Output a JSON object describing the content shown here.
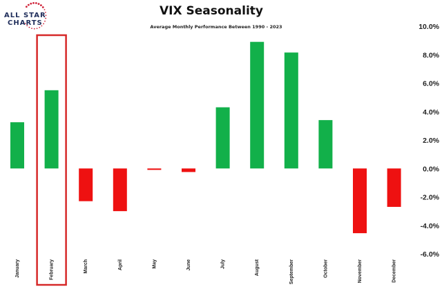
{
  "logo": {
    "line1": "ALL STAR",
    "line2": "CHARTS"
  },
  "chart_data": {
    "type": "bar",
    "title": "VIX Seasonality",
    "subtitle": "Average Monthly Performance Between 1990 - 2023",
    "categories": [
      "January",
      "February",
      "March",
      "April",
      "May",
      "June",
      "July",
      "August",
      "September",
      "October",
      "November",
      "December"
    ],
    "values": [
      3.25,
      5.5,
      -2.3,
      -3.0,
      -0.1,
      -0.25,
      4.3,
      8.9,
      8.15,
      3.4,
      -4.55,
      -2.7
    ],
    "units": "%",
    "ylim": [
      -6,
      10
    ],
    "yticks": [
      "10.0%",
      "8.0%",
      "6.0%",
      "4.0%",
      "2.0%",
      "0.0%",
      "-2.0%",
      "-4.0%",
      "-6.0%"
    ],
    "ytick_values": [
      10,
      8,
      6,
      4,
      2,
      0,
      -2,
      -4,
      -6
    ],
    "y_axis_side": "right",
    "grid": false,
    "highlighted_category": "February",
    "colors": {
      "positive": "#12b04a",
      "negative": "#ee1111",
      "highlight": "#d62828"
    }
  }
}
